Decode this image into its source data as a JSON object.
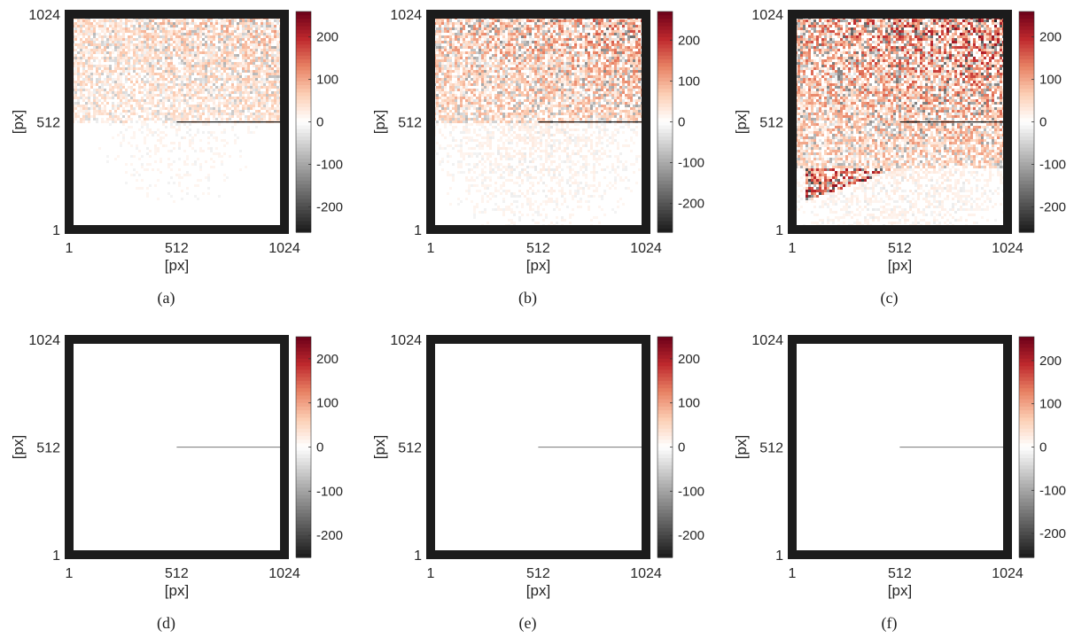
{
  "chart_data": [
    {
      "type": "heatmap",
      "caption": "(a)",
      "xlabel": "[px]",
      "ylabel": "[px]",
      "x_ticks": [
        "1",
        "512",
        "1024"
      ],
      "y_ticks": [
        "1",
        "512",
        "1024"
      ],
      "xlim": [
        1,
        1024
      ],
      "ylim": [
        1,
        1024
      ],
      "colorbar": {
        "ticks": [
          "200",
          "100",
          "0",
          "-100",
          "-200"
        ],
        "tick_values": [
          200,
          100,
          0,
          -100,
          -200
        ],
        "range": [
          -260,
          260
        ]
      },
      "crack": {
        "x_start": 512,
        "x_end": 1024,
        "y": 512
      },
      "noise_strength": 0.45,
      "front_boundary_y": 512
    },
    {
      "type": "heatmap",
      "caption": "(b)",
      "xlabel": "[px]",
      "ylabel": "[px]",
      "x_ticks": [
        "1",
        "512",
        "1024"
      ],
      "y_ticks": [
        "1",
        "512",
        "1024"
      ],
      "xlim": [
        1,
        1024
      ],
      "ylim": [
        1,
        1024
      ],
      "colorbar": {
        "ticks": [
          "200",
          "100",
          "0",
          "-100",
          "-200"
        ],
        "tick_values": [
          200,
          100,
          0,
          -100,
          -200
        ],
        "range": [
          -270,
          270
        ]
      },
      "crack": {
        "x_start": 512,
        "x_end": 1024,
        "y": 512
      },
      "noise_strength": 0.7,
      "front_boundary_y": 512
    },
    {
      "type": "heatmap",
      "caption": "(c)",
      "xlabel": "[px]",
      "ylabel": "[px]",
      "x_ticks": [
        "1",
        "512",
        "1024"
      ],
      "y_ticks": [
        "1",
        "512",
        "1024"
      ],
      "xlim": [
        1,
        1024
      ],
      "ylim": [
        1,
        1024
      ],
      "colorbar": {
        "ticks": [
          "200",
          "100",
          "0",
          "-100",
          "-200"
        ],
        "tick_values": [
          200,
          100,
          0,
          -100,
          -200
        ],
        "range": [
          -260,
          260
        ]
      },
      "crack": {
        "x_start": 512,
        "x_end": 1024,
        "y": 512
      },
      "noise_strength": 1.0,
      "front_boundary_y": 300
    },
    {
      "type": "heatmap",
      "caption": "(d)",
      "xlabel": "[px]",
      "ylabel": "[px]",
      "x_ticks": [
        "1",
        "512",
        "1024"
      ],
      "y_ticks": [
        "1",
        "512",
        "1024"
      ],
      "xlim": [
        1,
        1024
      ],
      "ylim": [
        1,
        1024
      ],
      "colorbar": {
        "ticks": [
          "200",
          "100",
          "0",
          "-100",
          "-200"
        ],
        "tick_values": [
          200,
          100,
          0,
          -100,
          -200
        ],
        "range": [
          -250,
          250
        ]
      },
      "crack": {
        "x_start": 512,
        "x_end": 1024,
        "y": 512
      },
      "noise_strength": 0.0,
      "front_boundary_y": 512
    },
    {
      "type": "heatmap",
      "caption": "(e)",
      "xlabel": "[px]",
      "ylabel": "[px]",
      "x_ticks": [
        "1",
        "512",
        "1024"
      ],
      "y_ticks": [
        "1",
        "512",
        "1024"
      ],
      "xlim": [
        1,
        1024
      ],
      "ylim": [
        1,
        1024
      ],
      "colorbar": {
        "ticks": [
          "200",
          "100",
          "0",
          "-100",
          "-200"
        ],
        "tick_values": [
          200,
          100,
          0,
          -100,
          -200
        ],
        "range": [
          -250,
          250
        ]
      },
      "crack": {
        "x_start": 512,
        "x_end": 1024,
        "y": 512
      },
      "noise_strength": 0.0,
      "front_boundary_y": 512
    },
    {
      "type": "heatmap",
      "caption": "(f)",
      "xlabel": "[px]",
      "ylabel": "[px]",
      "x_ticks": [
        "1",
        "512",
        "1024"
      ],
      "y_ticks": [
        "1",
        "512",
        "1024"
      ],
      "xlim": [
        1,
        1024
      ],
      "ylim": [
        1,
        1024
      ],
      "colorbar": {
        "ticks": [
          "200",
          "100",
          "0",
          "-100",
          "-200"
        ],
        "tick_values": [
          200,
          100,
          0,
          -100,
          -200
        ],
        "range": [
          -255,
          255
        ]
      },
      "crack": {
        "x_start": 512,
        "x_end": 1024,
        "y": 512
      },
      "noise_strength": 0.0,
      "front_boundary_y": 512
    }
  ],
  "colors": {
    "frame": "#1c1c1c",
    "crack_strong": "#1a1a1a",
    "crack_faint": "#777777",
    "colormap_positive_end": "#6b0019",
    "colormap_mid": "#ffffff",
    "colormap_negative_end": "#1a1a1a"
  }
}
